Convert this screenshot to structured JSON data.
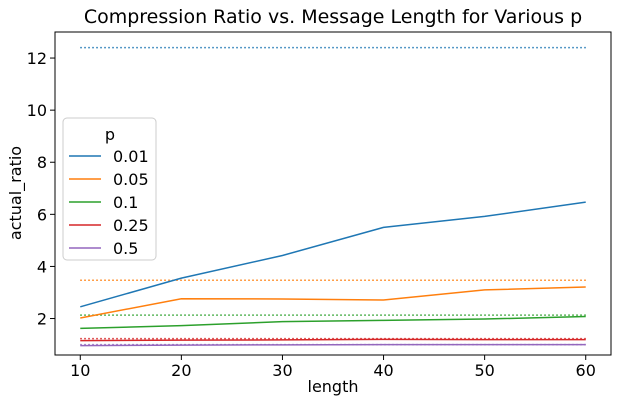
{
  "chart_data": {
    "type": "line",
    "title": "Compression Ratio vs. Message Length for Various p",
    "xlabel": "length",
    "ylabel": "actual_ratio",
    "x": [
      10,
      20,
      30,
      40,
      50,
      60
    ],
    "xlim": [
      7.5,
      62.5
    ],
    "ylim": [
      0.6,
      13.0
    ],
    "xticks": [
      "10",
      "20",
      "30",
      "40",
      "50",
      "60"
    ],
    "yticks": [
      "2",
      "4",
      "6",
      "8",
      "10",
      "12"
    ],
    "grid": false,
    "legend": {
      "title": "p",
      "placement": "center-left"
    },
    "series": [
      {
        "name": "0.01",
        "color": "#1f77b4",
        "values": [
          2.45,
          3.55,
          4.42,
          5.5,
          5.92,
          6.47
        ],
        "reference": 12.4
      },
      {
        "name": "0.05",
        "color": "#ff7f0e",
        "values": [
          2.02,
          2.76,
          2.75,
          2.71,
          3.1,
          3.21
        ],
        "reference": 3.47
      },
      {
        "name": "0.1",
        "color": "#2ca02c",
        "values": [
          1.62,
          1.73,
          1.88,
          1.93,
          1.98,
          2.08
        ],
        "reference": 2.13
      },
      {
        "name": "0.25",
        "color": "#d62728",
        "values": [
          1.15,
          1.17,
          1.18,
          1.2,
          1.19,
          1.19
        ],
        "reference": 1.23
      },
      {
        "name": "0.5",
        "color": "#9467bd",
        "values": [
          0.96,
          0.98,
          0.99,
          1.0,
          1.0,
          1.0
        ],
        "reference": 1.0
      }
    ]
  }
}
